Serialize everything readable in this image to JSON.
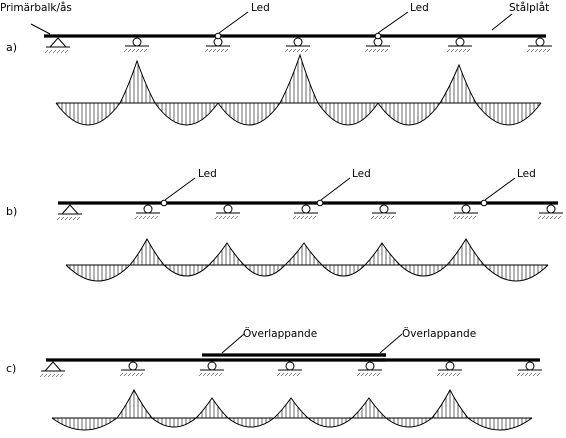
{
  "labels": {
    "primarbalk": "Primärbalk/ås",
    "stalplat": "Stålplåt",
    "led": "Led",
    "overlappande": "Överlappande"
  },
  "rows": {
    "a": "a)",
    "b": "b)",
    "c": "c)"
  }
}
